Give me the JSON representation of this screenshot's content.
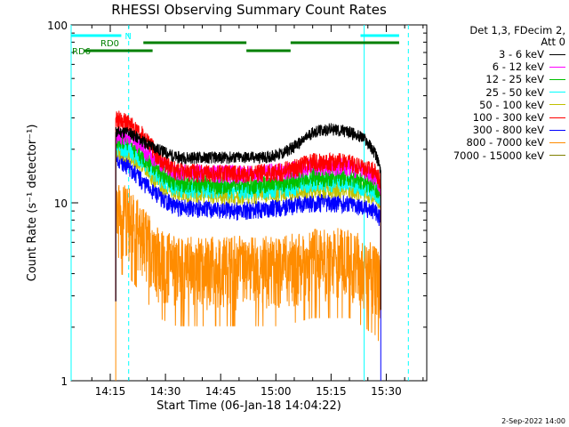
{
  "chart_data": {
    "type": "line",
    "title": "RHESSI Observing Summary Count Rates",
    "xlabel": "Start Time (06-Jan-18 14:04:22)",
    "ylabel": "Count Rate (s⁻¹ detector⁻¹)",
    "yscale": "log",
    "ylim": [
      1,
      100
    ],
    "xlim": [
      "14:04:22",
      "15:41:00"
    ],
    "x_ticks": [
      "14:15",
      "14:30",
      "14:45",
      "15:00",
      "15:15",
      "15:30"
    ],
    "y_ticks": [
      "1",
      "10",
      "100"
    ],
    "grid": false,
    "legend_header": "Det 1,3, FDecim 2,\nAtt 0",
    "legend_position": "right",
    "series": [
      {
        "name": "3 - 6 keV",
        "color": "#000000",
        "points": [
          [
            "14:16:30",
            25
          ],
          [
            "14:20:00",
            25
          ],
          [
            "14:24:00",
            22
          ],
          [
            "14:28:00",
            20
          ],
          [
            "14:33:00",
            18
          ],
          [
            "14:40:00",
            18
          ],
          [
            "14:50:00",
            18
          ],
          [
            "14:57:00",
            18
          ],
          [
            "15:02:00",
            19
          ],
          [
            "15:07:00",
            22
          ],
          [
            "15:10:00",
            25
          ],
          [
            "15:15:00",
            26
          ],
          [
            "15:20:00",
            25
          ],
          [
            "15:24:00",
            23
          ],
          [
            "15:27:00",
            19
          ],
          [
            "15:28:30",
            15
          ]
        ]
      },
      {
        "name": "6 - 12 keV",
        "color": "#ff00ff",
        "points": [
          [
            "14:16:30",
            24
          ],
          [
            "14:20:00",
            24
          ],
          [
            "14:24:00",
            20
          ],
          [
            "14:28:00",
            17
          ],
          [
            "14:33:00",
            15
          ],
          [
            "14:50:00",
            14.5
          ],
          [
            "15:02:00",
            15
          ],
          [
            "15:10:00",
            16
          ],
          [
            "15:20:00",
            16
          ],
          [
            "15:27:00",
            14
          ],
          [
            "15:28:30",
            12
          ]
        ]
      },
      {
        "name": "12 - 25 keV",
        "color": "#00c000",
        "points": [
          [
            "14:16:30",
            23
          ],
          [
            "14:20:00",
            22
          ],
          [
            "14:24:00",
            18
          ],
          [
            "14:28:00",
            15
          ],
          [
            "14:33:00",
            13
          ],
          [
            "14:50:00",
            12.5
          ],
          [
            "15:02:00",
            13
          ],
          [
            "15:10:00",
            14
          ],
          [
            "15:20:00",
            14
          ],
          [
            "15:27:00",
            12.5
          ],
          [
            "15:28:30",
            11
          ]
        ]
      },
      {
        "name": "25 - 50 keV",
        "color": "#00ffff",
        "points": [
          [
            "14:16:30",
            21
          ],
          [
            "14:20:00",
            20
          ],
          [
            "14:24:00",
            17
          ],
          [
            "14:28:00",
            14
          ],
          [
            "14:33:00",
            12
          ],
          [
            "14:50:00",
            11.8
          ],
          [
            "15:02:00",
            12
          ],
          [
            "15:10:00",
            13
          ],
          [
            "15:20:00",
            13
          ],
          [
            "15:27:00",
            11.5
          ],
          [
            "15:28:30",
            10.5
          ]
        ]
      },
      {
        "name": "50 - 100 keV",
        "color": "#c0c000",
        "points": [
          [
            "14:16:30",
            20
          ],
          [
            "14:20:00",
            19
          ],
          [
            "14:24:00",
            16
          ],
          [
            "14:28:00",
            13
          ],
          [
            "14:33:00",
            11.5
          ],
          [
            "14:50:00",
            11
          ],
          [
            "15:02:00",
            11.5
          ],
          [
            "15:10:00",
            12
          ],
          [
            "15:20:00",
            12
          ],
          [
            "15:27:00",
            11
          ],
          [
            "15:28:30",
            10
          ]
        ]
      },
      {
        "name": "100 - 300 keV",
        "color": "#ff0000",
        "points": [
          [
            "14:16:30",
            30
          ],
          [
            "14:20:00",
            28
          ],
          [
            "14:24:00",
            24
          ],
          [
            "14:28:00",
            18
          ],
          [
            "14:33:00",
            15
          ],
          [
            "14:50:00",
            14.5
          ],
          [
            "15:02:00",
            15
          ],
          [
            "15:10:00",
            17
          ],
          [
            "15:20:00",
            17
          ],
          [
            "15:27:00",
            15
          ],
          [
            "15:28:30",
            13
          ]
        ]
      },
      {
        "name": "300 - 800 keV",
        "color": "#0000ff",
        "points": [
          [
            "14:16:30",
            18
          ],
          [
            "14:20:00",
            16
          ],
          [
            "14:24:00",
            13
          ],
          [
            "14:28:00",
            11
          ],
          [
            "14:33:00",
            9.5
          ],
          [
            "14:50:00",
            9
          ],
          [
            "15:02:00",
            9.5
          ],
          [
            "15:10:00",
            10
          ],
          [
            "15:20:00",
            10
          ],
          [
            "15:27:00",
            9
          ],
          [
            "15:28:30",
            8
          ]
        ]
      },
      {
        "name": "800 - 7000 keV",
        "color": "#ff8c00",
        "points": [
          [
            "14:16:30",
            9
          ],
          [
            "14:20:00",
            8.5
          ],
          [
            "14:24:00",
            6.5
          ],
          [
            "14:28:00",
            5
          ],
          [
            "14:33:00",
            4.5
          ],
          [
            "14:50:00",
            4.5
          ],
          [
            "15:02:00",
            4.5
          ],
          [
            "15:10:00",
            5
          ],
          [
            "15:20:00",
            5
          ],
          [
            "15:27:00",
            4
          ],
          [
            "15:28:30",
            3.5
          ]
        ]
      },
      {
        "name": "7000 - 15000 keV",
        "color": "#808000",
        "points": []
      }
    ],
    "state_bars": [
      {
        "label": "N",
        "color": "#00ffff",
        "segments": [
          [
            "14:04:22",
            "14:18:00"
          ],
          [
            "15:23:00",
            "15:33:30"
          ]
        ]
      },
      {
        "label": "RD0",
        "color": "#008000",
        "segments": [
          [
            "14:24:00",
            "14:52:00"
          ],
          [
            "15:04:00",
            "15:33:30"
          ]
        ]
      },
      {
        "label": "RD6",
        "color": "#008000",
        "segments": [
          [
            "14:08:00",
            "14:26:30"
          ],
          [
            "14:52:00",
            "15:04:00"
          ]
        ]
      }
    ],
    "vertical_markers": [
      {
        "time": "14:04:22",
        "style": "solid",
        "color": "#00ffff"
      },
      {
        "time": "14:20:00",
        "style": "dashed",
        "color": "#00ffff"
      },
      {
        "time": "15:24:00",
        "style": "solid",
        "color": "#00ffff"
      },
      {
        "time": "15:36:00",
        "style": "dashed",
        "color": "#00ffff"
      }
    ]
  },
  "footer_date": "2-Sep-2022 14:00"
}
